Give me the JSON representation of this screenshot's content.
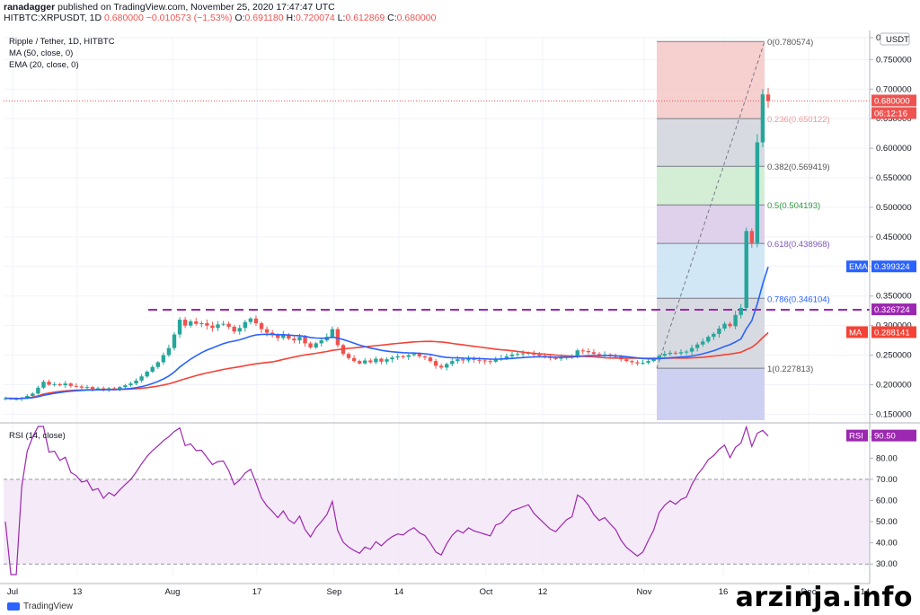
{
  "header": {
    "author": "ranadagger",
    "published": "published on TradingView.com, November 25, 2020 17:47:47 UTC"
  },
  "ohlc": {
    "symbol": "HITBTC:XRPUSDT, 1D",
    "last": "0.680000",
    "change": "−0.010573 (−1.53%)",
    "open_label": "O:",
    "open": "0.691180",
    "high_label": "H:",
    "high": "0.720074",
    "low_label": "L:",
    "low": "0.612869",
    "close_label": "C:",
    "close": "0.680000"
  },
  "legend": {
    "pair": "Ripple / Tether, 1D, HITBTC",
    "ma": "MA (50, close, 0)",
    "ema": "EMA (20, close, 0)",
    "rsi": "RSI (14, close)"
  },
  "currency": "USDT",
  "badges": {
    "price": "0.680000",
    "timer": "06:12:16",
    "ema_label": "EMA",
    "ema_value": "0.399324",
    "ma_label": "MA",
    "ma_value": "0.288141",
    "level": "0.326724",
    "rsi_label": "RSI",
    "rsi_value": "90.50"
  },
  "colors": {
    "up": "#26a69a",
    "down": "#ef5350",
    "ma": "#f44336",
    "ema": "#2962ff",
    "rsi": "#9c27b0",
    "level_line": "#9c27b0"
  },
  "watermark": "arzinja.info",
  "brand": "TradingView",
  "chart_data": [
    {
      "type": "candlestick",
      "title": "Ripple / Tether, 1D, HITBTC",
      "ylim": [
        0.14,
        0.79
      ],
      "y_ticks": [
        "0.150000",
        "0.200000",
        "0.250000",
        "0.300000",
        "0.350000",
        "0.400000",
        "0.450000",
        "0.500000",
        "0.550000",
        "0.600000",
        "0.650000",
        "0.700000",
        "0.750000",
        "0"
      ],
      "x_ticks": [
        "Jul",
        "13",
        "Aug",
        "17",
        "Sep",
        "14",
        "Oct",
        "12",
        "Nov",
        "16",
        "Dec",
        "14"
      ],
      "horizontal_level": 0.326724,
      "fibonacci": {
        "levels": [
          {
            "ratio": "0",
            "label": "0(0.780574)",
            "value": 0.780574
          },
          {
            "ratio": "0.236",
            "label": "0.236(0.650122)",
            "value": 0.650122
          },
          {
            "ratio": "0.382",
            "label": "0.382(0.569419)",
            "value": 0.569419
          },
          {
            "ratio": "0.5",
            "label": "0.5(0.504193)",
            "value": 0.504193
          },
          {
            "ratio": "0.618",
            "label": "0.618(0.438968)",
            "value": 0.438968
          },
          {
            "ratio": "0.786",
            "label": "0.786(0.346104)",
            "value": 0.346104
          },
          {
            "ratio": "1",
            "label": "1(0.227813)",
            "value": 0.227813
          }
        ],
        "zone_colors": [
          "#f4c7c7",
          "#d1d4dc",
          "#cdebcf",
          "#d9c9e8",
          "#c9e3f5",
          "#d1d4dc",
          "#c5c8f0"
        ]
      },
      "closes": [
        0.177,
        0.176,
        0.176,
        0.178,
        0.181,
        0.185,
        0.195,
        0.205,
        0.2,
        0.201,
        0.199,
        0.202,
        0.198,
        0.197,
        0.195,
        0.196,
        0.193,
        0.194,
        0.191,
        0.194,
        0.193,
        0.196,
        0.199,
        0.202,
        0.207,
        0.214,
        0.222,
        0.23,
        0.238,
        0.25,
        0.262,
        0.285,
        0.31,
        0.3,
        0.307,
        0.303,
        0.304,
        0.3,
        0.296,
        0.302,
        0.303,
        0.298,
        0.29,
        0.296,
        0.306,
        0.312,
        0.304,
        0.294,
        0.288,
        0.284,
        0.279,
        0.285,
        0.278,
        0.275,
        0.281,
        0.27,
        0.263,
        0.27,
        0.275,
        0.281,
        0.294,
        0.267,
        0.252,
        0.245,
        0.24,
        0.236,
        0.241,
        0.238,
        0.244,
        0.239,
        0.243,
        0.246,
        0.248,
        0.247,
        0.25,
        0.252,
        0.248,
        0.246,
        0.24,
        0.232,
        0.229,
        0.235,
        0.24,
        0.243,
        0.241,
        0.244,
        0.242,
        0.241,
        0.24,
        0.239,
        0.244,
        0.245,
        0.248,
        0.251,
        0.252,
        0.253,
        0.254,
        0.251,
        0.249,
        0.247,
        0.245,
        0.244,
        0.246,
        0.248,
        0.249,
        0.258,
        0.257,
        0.255,
        0.252,
        0.25,
        0.251,
        0.249,
        0.247,
        0.243,
        0.24,
        0.238,
        0.236,
        0.237,
        0.24,
        0.243,
        0.249,
        0.252,
        0.254,
        0.253,
        0.255,
        0.256,
        0.262,
        0.268,
        0.273,
        0.281,
        0.286,
        0.295,
        0.303,
        0.299,
        0.318,
        0.33,
        0.46,
        0.44,
        0.61,
        0.691,
        0.68
      ],
      "ma50_end": 0.288141,
      "ema20_end": 0.399324
    },
    {
      "type": "line",
      "title": "RSI (14, close)",
      "ylim": [
        25,
        95
      ],
      "y_ticks": [
        "30.00",
        "40.00",
        "50.00",
        "60.00",
        "70.00",
        "80.00",
        "90.00"
      ],
      "band": [
        30,
        70
      ],
      "last": 90.5
    }
  ]
}
